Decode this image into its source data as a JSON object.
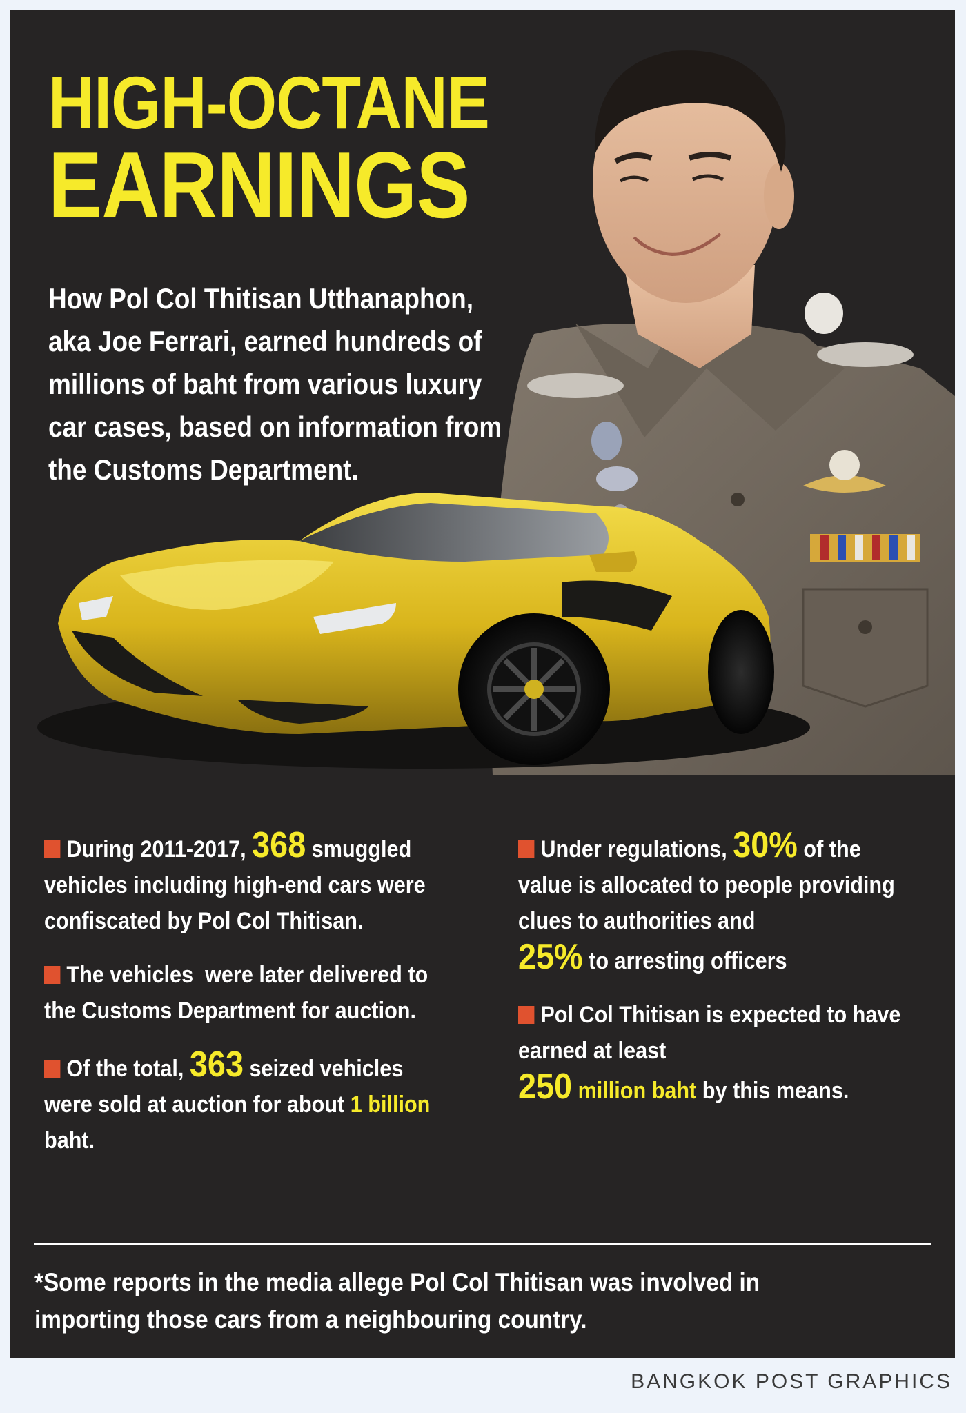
{
  "headline": {
    "line1": "HIGH-OCTANE",
    "line2": "EARNINGS"
  },
  "intro": "How Pol Col Thitisan Utthanaphon, aka Joe Ferrari, earned hundreds of millions of baht from various luxury car cases, based on information from the Customs Department.",
  "left_column": {
    "b1": {
      "pre": "During 2011-2017,",
      "num": "368",
      "post": "smuggled vehicles including high-end cars were confiscated by Pol Col Thitisan."
    },
    "b2": {
      "text": "The vehicles  were later delivered to the Customs Department for auction."
    },
    "b3": {
      "pre": "Of the total,",
      "num": "363",
      "mid": "seized vehicles were sold at auction for about",
      "hl": "1 billion",
      "post": "baht."
    }
  },
  "right_column": {
    "b1": {
      "pre": "Under regulations,",
      "num": "30%",
      "mid": "of the value is allocated to people providing clues to authorities and",
      "num2": "25%",
      "post": "to arresting officers"
    },
    "b2": {
      "pre": "Pol Col Thitisan is expected to have earned at least",
      "num": "250",
      "hl": "million baht",
      "post": "by this means."
    }
  },
  "footnote": "*Some reports in the media allege Pol Col Thitisan was involved in importing those cars from a neighbouring country.",
  "credit": "BANGKOK POST GRAPHICS",
  "colors": {
    "background": "#262424",
    "accent_yellow": "#f6ea2a",
    "bullet_square": "#e0522f",
    "car_yellow": "#e4c325",
    "uniform": "#736a60",
    "page_frame": "#eef3fa"
  }
}
